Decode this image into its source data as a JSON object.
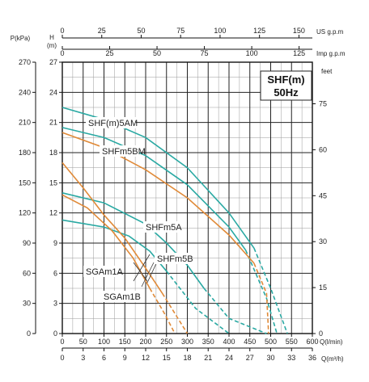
{
  "chart_data": {
    "type": "line",
    "title": [
      "SHF(m)",
      "50Hz"
    ],
    "colors": {
      "shf": "#2aa9a3",
      "sgam": "#e08a38",
      "grid": "#222222",
      "minor_grid": "#9a9a9a"
    },
    "x": {
      "label": "Q(l/min)",
      "range": [
        0,
        600
      ],
      "ticks": [
        "0",
        "50",
        "100",
        "150",
        "200",
        "250",
        "300",
        "350",
        "400",
        "450",
        "500",
        "550",
        "600"
      ]
    },
    "x2": {
      "label": "Q(m³/h)",
      "ticks": [
        "0",
        "3",
        "6",
        "9",
        "12",
        "15",
        "18",
        "21",
        "24",
        "27",
        "30",
        "33",
        "36"
      ]
    },
    "x_top_us": {
      "label": "US g.p.m",
      "max": 158.5,
      "ticks": [
        "0",
        "25",
        "50",
        "75",
        "100",
        "125",
        "150"
      ]
    },
    "x_top_imp": {
      "label": "Imp g.p.m",
      "max": 132,
      "ticks": [
        "0",
        "25",
        "50",
        "75",
        "100",
        "125"
      ]
    },
    "y": {
      "label": "H (m)",
      "range": [
        0,
        27
      ],
      "ticks": [
        "0",
        "3",
        "6",
        "9",
        "12",
        "15",
        "18",
        "21",
        "24",
        "27"
      ]
    },
    "y_left2": {
      "label": "P(kPa)",
      "ticks": [
        "0",
        "30",
        "60",
        "90",
        "120",
        "150",
        "180",
        "210",
        "240",
        "270"
      ]
    },
    "y_right": {
      "label": "feet",
      "max": 88.58,
      "ticks": [
        "0",
        "15",
        "30",
        "45",
        "60",
        "75"
      ]
    },
    "series": [
      {
        "name": "SHF(m)5AM",
        "group": "shf",
        "solid": [
          [
            0,
            22.5
          ],
          [
            100,
            21.3
          ],
          [
            200,
            19.5
          ],
          [
            300,
            16.5
          ],
          [
            400,
            12.0
          ],
          [
            460,
            8.5
          ]
        ],
        "dashed": [
          [
            460,
            8.5
          ],
          [
            500,
            4.5
          ],
          [
            540,
            0
          ]
        ]
      },
      {
        "name": "SHFm5BM",
        "group": "shf",
        "solid": [
          [
            0,
            20.5
          ],
          [
            100,
            19.5
          ],
          [
            200,
            17.7
          ],
          [
            300,
            14.8
          ],
          [
            400,
            10.6
          ],
          [
            440,
            8.3
          ]
        ],
        "dashed": [
          [
            440,
            8.3
          ],
          [
            490,
            3.5
          ],
          [
            515,
            0
          ]
        ]
      },
      {
        "name": "SHFm5A",
        "group": "shf",
        "solid": [
          [
            0,
            14.0
          ],
          [
            100,
            13.0
          ],
          [
            200,
            10.9
          ],
          [
            250,
            9.0
          ],
          [
            300,
            6.8
          ],
          [
            340,
            4.5
          ]
        ],
        "dashed": [
          [
            340,
            4.5
          ],
          [
            400,
            1.5
          ],
          [
            490,
            0
          ]
        ]
      },
      {
        "name": "SHFm5B",
        "group": "shf",
        "solid": [
          [
            0,
            11.3
          ],
          [
            100,
            10.6
          ],
          [
            160,
            9.7
          ],
          [
            210,
            8.2
          ],
          [
            250,
            6.2
          ]
        ],
        "dashed": [
          [
            250,
            6.2
          ],
          [
            320,
            2.5
          ],
          [
            400,
            0
          ]
        ]
      },
      {
        "name": "SHF(m)5AM",
        "group": "sgam",
        "solid": [
          [
            0,
            20.0
          ],
          [
            100,
            18.5
          ],
          [
            200,
            16.3
          ],
          [
            300,
            13.5
          ],
          [
            400,
            9.8
          ],
          [
            460,
            7.0
          ]
        ],
        "dashed": [
          [
            460,
            7.0
          ],
          [
            490,
            4.0
          ],
          [
            495,
            0
          ]
        ]
      },
      {
        "name": "SGAm1A",
        "group": "sgam",
        "solid": [
          [
            0,
            17.0
          ],
          [
            50,
            14.5
          ],
          [
            100,
            11.8
          ],
          [
            150,
            9.5
          ],
          [
            200,
            6.5
          ],
          [
            240,
            4.0
          ]
        ],
        "dashed": [
          [
            240,
            4.0
          ],
          [
            270,
            2.0
          ],
          [
            300,
            0
          ]
        ]
      },
      {
        "name": "SGAm1B",
        "group": "sgam",
        "solid": [
          [
            0,
            13.8
          ],
          [
            60,
            12.5
          ],
          [
            120,
            10.2
          ],
          [
            170,
            7.5
          ],
          [
            210,
            4.5
          ]
        ],
        "dashed": [
          [
            210,
            4.5
          ],
          [
            245,
            2.0
          ],
          [
            270,
            0
          ]
        ]
      }
    ],
    "labels": [
      {
        "text": "SHF(m)5AM"
      },
      {
        "text": "SHFm5BM"
      },
      {
        "text": "SHFm5A"
      },
      {
        "text": "SHFm5B"
      },
      {
        "text": "SGAm1A"
      },
      {
        "text": "SGAm1B"
      }
    ]
  }
}
